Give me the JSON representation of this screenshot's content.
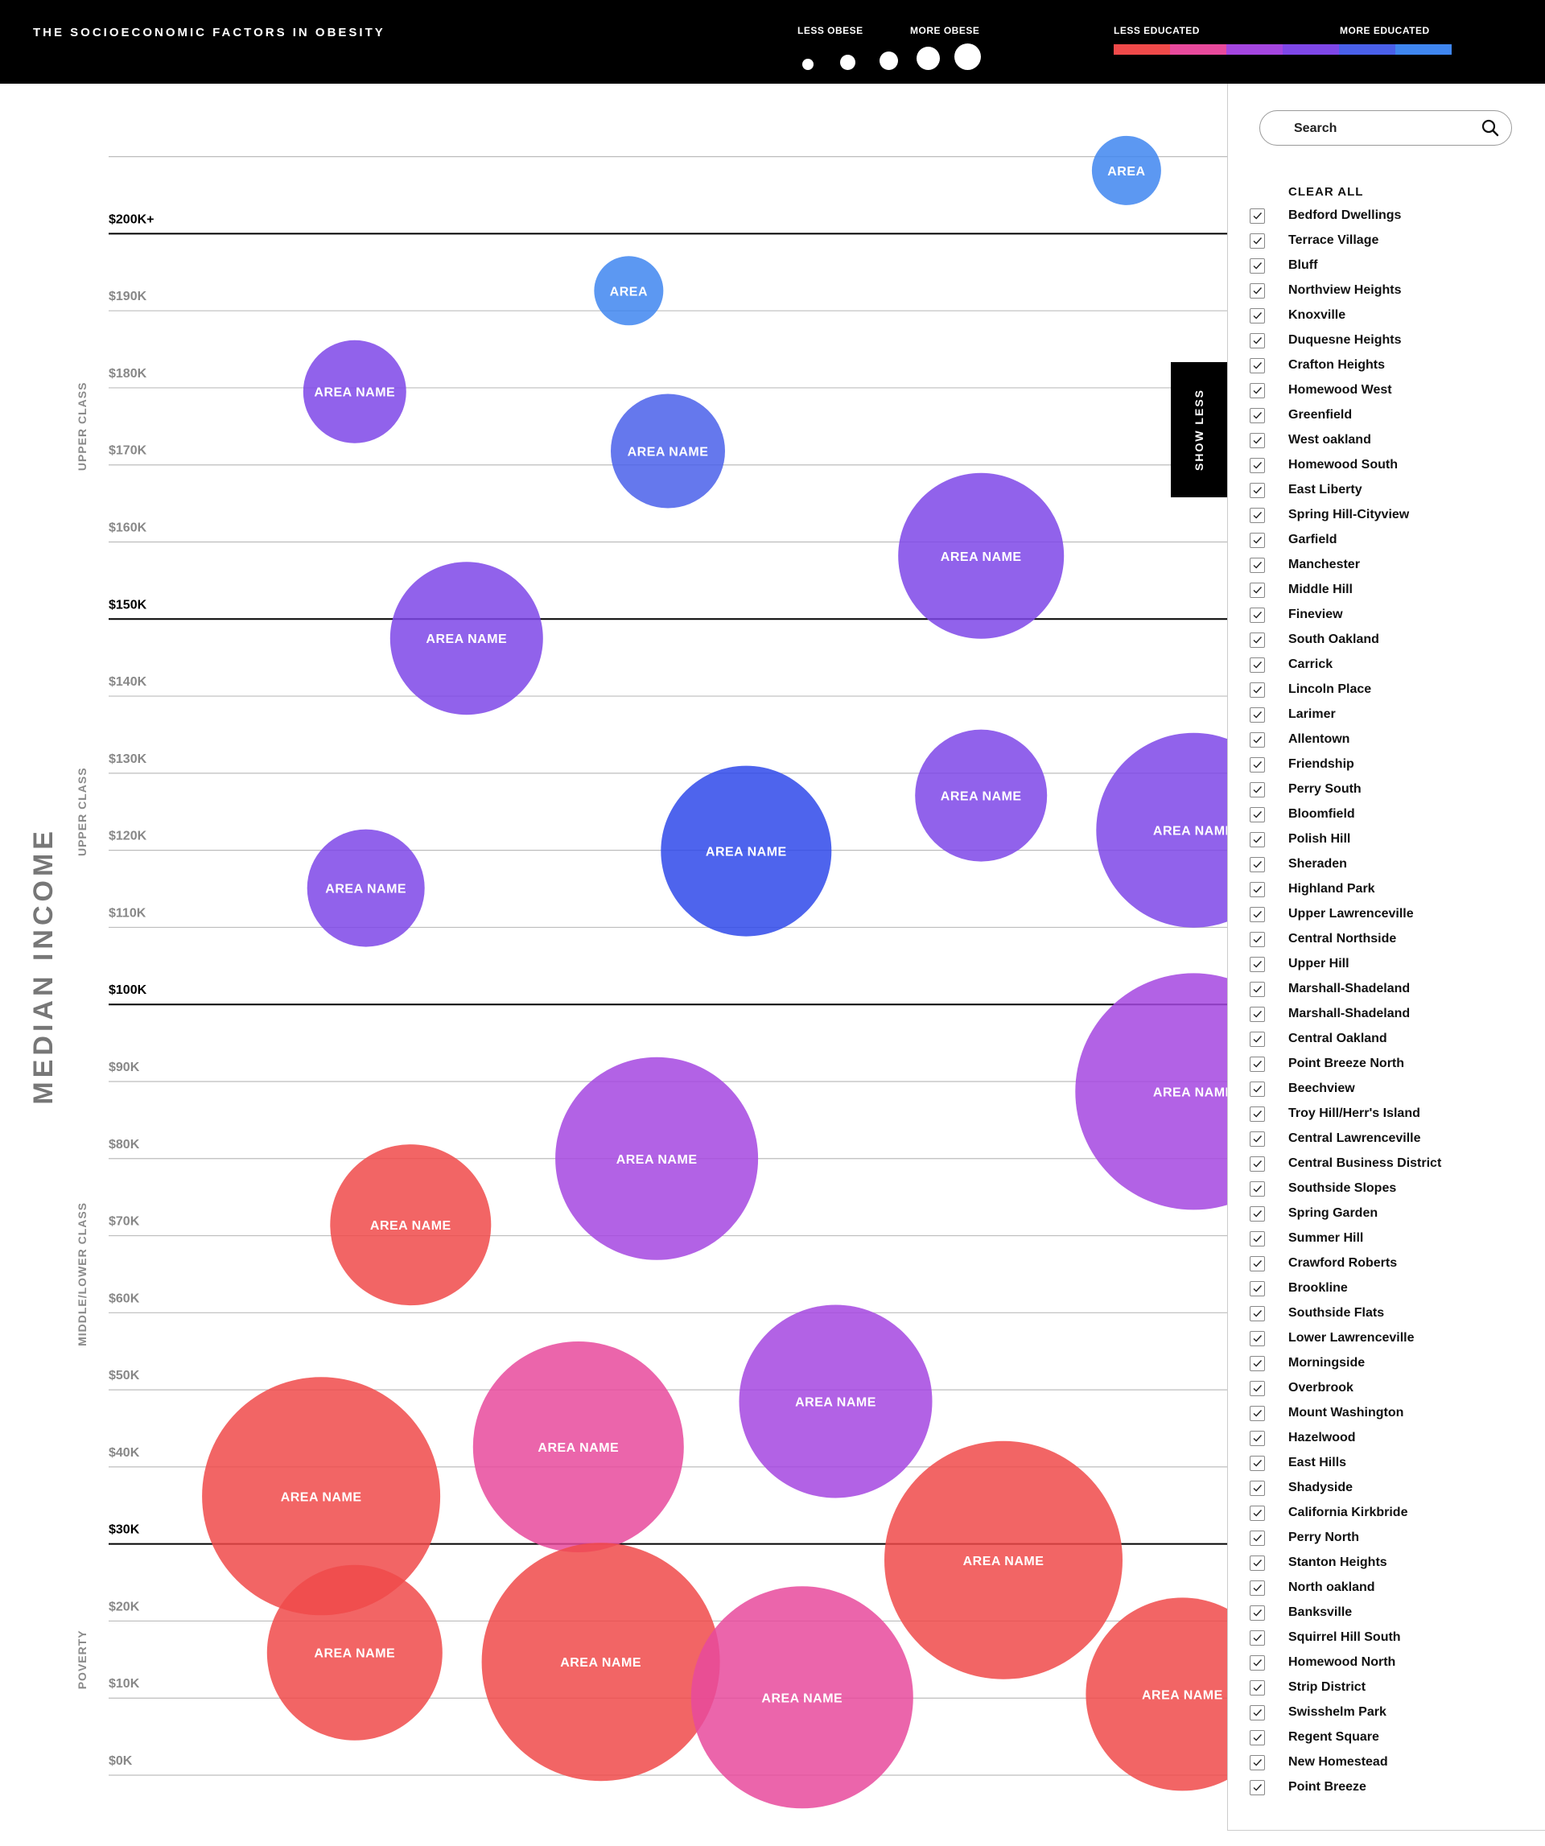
{
  "header": {
    "title": "THE SOCIOECONOMIC FACTORS IN OBESITY",
    "size_legend": {
      "low_label": "LESS OBESE",
      "high_label": "MORE OBESE"
    },
    "color_legend": {
      "low_label": "LESS EDUCATED",
      "high_label": "MORE EDUCATED",
      "colors": [
        "#f04a4a",
        "#e84a9c",
        "#a446e0",
        "#7e47e8",
        "#4a60ea",
        "#3f86f0"
      ]
    }
  },
  "show_less_label": "SHOW LESS",
  "sidebar": {
    "search_placeholder": "Search",
    "clear_all_label": "CLEAR ALL",
    "items": [
      "Bedford Dwellings",
      "Terrace Village",
      "Bluff",
      "Northview Heights",
      "Knoxville",
      "Duquesne Heights",
      "Crafton Heights",
      "Homewood West",
      "Greenfield",
      "West oakland",
      "Homewood South",
      "East Liberty",
      "Spring Hill-Cityview",
      "Garfield",
      "Manchester",
      "Middle Hill",
      "Fineview",
      "South Oakland",
      "Carrick",
      "Lincoln Place",
      "Larimer",
      "Allentown",
      "Friendship",
      "Perry South",
      "Bloomfield",
      "Polish Hill",
      "Sheraden",
      "Highland Park",
      "Upper Lawrenceville",
      "Central Northside",
      "Upper Hill",
      "Marshall-Shadeland",
      "Marshall-Shadeland",
      "Central Oakland",
      "Point Breeze North",
      "Beechview",
      "Troy Hill/Herr's Island",
      "Central Lawrenceville",
      "Central Business District",
      "Southside Slopes",
      "Spring Garden",
      "Summer Hill",
      "Crawford Roberts",
      "Brookline",
      "Southside Flats",
      "Lower Lawrenceville",
      "Morningside",
      "Overbrook",
      "Mount Washington",
      "Hazelwood",
      "East Hills",
      "Shadyside",
      "California Kirkbride",
      "Perry North",
      "Stanton Heights",
      "North oakland",
      "Banksville",
      "Squirrel Hill South",
      "Homewood North",
      "Strip District",
      "Swisshelm Park",
      "Regent Square",
      "New Homestead",
      "Point Breeze"
    ]
  },
  "chart_data": {
    "type": "scatter",
    "ylabel": "MEDIAN INCOME",
    "ylim": [
      0,
      210
    ],
    "y_ticks": [
      {
        "value": 0,
        "label": "$0K",
        "major": false
      },
      {
        "value": 10,
        "label": "$10K",
        "major": false
      },
      {
        "value": 20,
        "label": "$20K",
        "major": false
      },
      {
        "value": 30,
        "label": "$30K",
        "major": true
      },
      {
        "value": 40,
        "label": "$40K",
        "major": false
      },
      {
        "value": 50,
        "label": "$50K",
        "major": false
      },
      {
        "value": 60,
        "label": "$60K",
        "major": false
      },
      {
        "value": 70,
        "label": "$70K",
        "major": false
      },
      {
        "value": 80,
        "label": "$80K",
        "major": false
      },
      {
        "value": 90,
        "label": "$90K",
        "major": false
      },
      {
        "value": 100,
        "label": "$100K",
        "major": true
      },
      {
        "value": 110,
        "label": "$110K",
        "major": false
      },
      {
        "value": 120,
        "label": "$120K",
        "major": false
      },
      {
        "value": 130,
        "label": "$130K",
        "major": false
      },
      {
        "value": 140,
        "label": "$140K",
        "major": false
      },
      {
        "value": 150,
        "label": "$150K",
        "major": true
      },
      {
        "value": 160,
        "label": "$160K",
        "major": false
      },
      {
        "value": 170,
        "label": "$170K",
        "major": false
      },
      {
        "value": 180,
        "label": "$180K",
        "major": false
      },
      {
        "value": 190,
        "label": "$190K",
        "major": false
      },
      {
        "value": 200,
        "label": "$200K+",
        "major": true
      },
      {
        "value": 210,
        "label": "",
        "major": false
      }
    ],
    "bands": [
      {
        "label": "UPPER CLASS",
        "center": 175
      },
      {
        "label": "UPPER CLASS",
        "center": 125
      },
      {
        "label": "MIDDLE/LOWER CLASS",
        "center": 65
      },
      {
        "label": "POVERTY",
        "center": 15
      }
    ],
    "bubbles": [
      {
        "label": "AREA",
        "x": 0.91,
        "y": 208.2,
        "r": 43,
        "color": "#3f86f0"
      },
      {
        "label": "AREA",
        "x": 0.465,
        "y": 192.6,
        "r": 43,
        "color": "#3f86f0"
      },
      {
        "label": "AREA NAME",
        "x": 0.22,
        "y": 179.5,
        "r": 64,
        "color": "#7e47e8"
      },
      {
        "label": "AREA NAME",
        "x": 0.5,
        "y": 171.8,
        "r": 71,
        "color": "#4a60ea"
      },
      {
        "label": "AREA NAME",
        "x": 0.78,
        "y": 158.2,
        "r": 103,
        "color": "#7e47e8"
      },
      {
        "label": "AREA NAME",
        "x": 0.32,
        "y": 147.5,
        "r": 95,
        "color": "#7e47e8"
      },
      {
        "label": "AREA NAME",
        "x": 0.78,
        "y": 127.1,
        "r": 82,
        "color": "#7e47e8"
      },
      {
        "label": "AREA NAME",
        "x": 0.97,
        "y": 122.6,
        "r": 121,
        "color": "#7e47e8"
      },
      {
        "label": "AREA NAME",
        "x": 0.57,
        "y": 119.9,
        "r": 106,
        "color": "#2f49ea"
      },
      {
        "label": "AREA NAME",
        "x": 0.23,
        "y": 115.1,
        "r": 73,
        "color": "#7e47e8"
      },
      {
        "label": "AREA NAME",
        "x": 0.97,
        "y": 88.7,
        "r": 147,
        "color": "#a446e0"
      },
      {
        "label": "AREA NAME",
        "x": 0.49,
        "y": 80.0,
        "r": 126,
        "color": "#a446e0"
      },
      {
        "label": "AREA NAME",
        "x": 0.27,
        "y": 71.4,
        "r": 100,
        "color": "#f04a4a"
      },
      {
        "label": "AREA NAME",
        "x": 0.65,
        "y": 48.5,
        "r": 120,
        "color": "#a446e0"
      },
      {
        "label": "AREA NAME",
        "x": 0.42,
        "y": 42.6,
        "r": 131,
        "color": "#e84a9c"
      },
      {
        "label": "AREA NAME",
        "x": 0.19,
        "y": 36.2,
        "r": 148,
        "color": "#f04a4a"
      },
      {
        "label": "AREA NAME",
        "x": 0.8,
        "y": 27.9,
        "r": 148,
        "color": "#f04a4a"
      },
      {
        "label": "AREA NAME",
        "x": 0.22,
        "y": 15.9,
        "r": 109,
        "color": "#f04a4a"
      },
      {
        "label": "AREA NAME",
        "x": 0.44,
        "y": 14.7,
        "r": 148,
        "color": "#f04a4a"
      },
      {
        "label": "AREA NAME",
        "x": 0.62,
        "y": 10.1,
        "r": 138,
        "color": "#e84a9c"
      },
      {
        "label": "AREA NAME",
        "x": 0.96,
        "y": 10.5,
        "r": 120,
        "color": "#f04a4a"
      }
    ]
  }
}
